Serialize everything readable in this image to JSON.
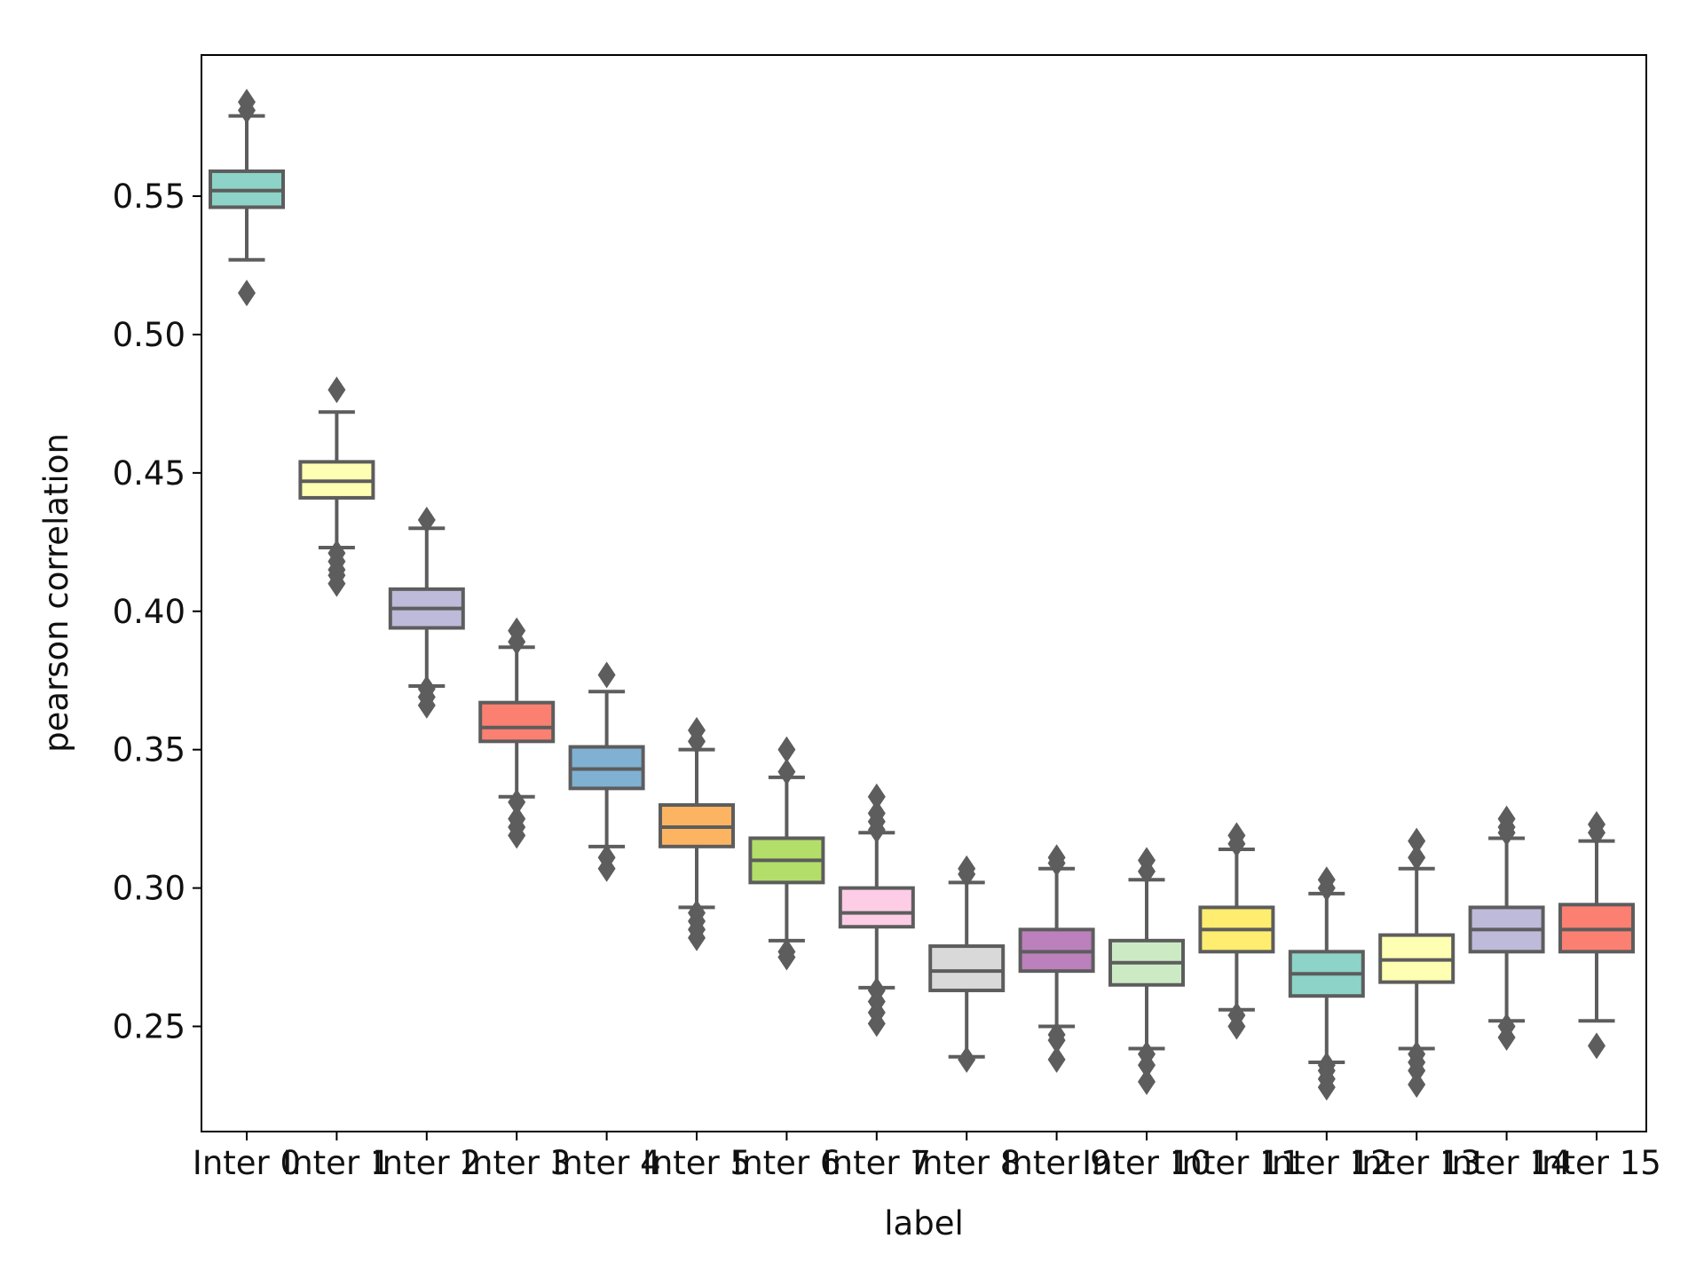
{
  "chart_data": {
    "type": "box",
    "xlabel": "label",
    "ylabel": "pearson correlation",
    "ylim": [
      0.212,
      0.601
    ],
    "yticks": [
      0.25,
      0.3,
      0.35,
      0.4,
      0.45,
      0.5,
      0.55
    ],
    "ytick_labels": [
      "0.25",
      "0.30",
      "0.35",
      "0.40",
      "0.45",
      "0.50",
      "0.55"
    ],
    "grid": false,
    "categories": [
      "Inter 0",
      "Inter 1",
      "Inter 2",
      "Inter 3",
      "Inter 4",
      "Inter 5",
      "Inter 6",
      "Inter 7",
      "Inter 8",
      "Inter 9",
      "Inter 10",
      "Inter 11",
      "Inter 12",
      "Inter 13",
      "Inter 14",
      "Inter 15"
    ],
    "colors": [
      "#8dd3c7",
      "#ffffb3",
      "#bebada",
      "#fb8072",
      "#80b1d3",
      "#fdb462",
      "#b3de69",
      "#fccde5",
      "#d9d9d9",
      "#bc80bd",
      "#ccebc5",
      "#ffed6f",
      "#8dd3c7",
      "#ffffb3",
      "#bebada",
      "#fb8072"
    ],
    "boxes": [
      {
        "whislo": 0.527,
        "q1": 0.546,
        "median": 0.552,
        "q3": 0.559,
        "whishi": 0.579,
        "fliers": [
          0.584,
          0.581,
          0.515
        ]
      },
      {
        "whislo": 0.423,
        "q1": 0.441,
        "median": 0.447,
        "q3": 0.454,
        "whishi": 0.472,
        "fliers": [
          0.48,
          0.421,
          0.418,
          0.415,
          0.413,
          0.41
        ]
      },
      {
        "whislo": 0.373,
        "q1": 0.394,
        "median": 0.401,
        "q3": 0.408,
        "whishi": 0.43,
        "fliers": [
          0.433,
          0.372,
          0.369,
          0.366
        ]
      },
      {
        "whislo": 0.333,
        "q1": 0.353,
        "median": 0.358,
        "q3": 0.367,
        "whishi": 0.387,
        "fliers": [
          0.393,
          0.389,
          0.331,
          0.325,
          0.322,
          0.319
        ]
      },
      {
        "whislo": 0.315,
        "q1": 0.336,
        "median": 0.343,
        "q3": 0.351,
        "whishi": 0.371,
        "fliers": [
          0.377,
          0.311,
          0.307
        ]
      },
      {
        "whislo": 0.293,
        "q1": 0.315,
        "median": 0.322,
        "q3": 0.33,
        "whishi": 0.35,
        "fliers": [
          0.357,
          0.353,
          0.291,
          0.288,
          0.285,
          0.282
        ]
      },
      {
        "whislo": 0.281,
        "q1": 0.302,
        "median": 0.31,
        "q3": 0.318,
        "whishi": 0.34,
        "fliers": [
          0.35,
          0.342,
          0.277,
          0.275
        ]
      },
      {
        "whislo": 0.264,
        "q1": 0.286,
        "median": 0.291,
        "q3": 0.3,
        "whishi": 0.32,
        "fliers": [
          0.333,
          0.327,
          0.324,
          0.321,
          0.263,
          0.259,
          0.255,
          0.251
        ]
      },
      {
        "whislo": 0.239,
        "q1": 0.263,
        "median": 0.27,
        "q3": 0.279,
        "whishi": 0.302,
        "fliers": [
          0.307,
          0.305,
          0.238
        ]
      },
      {
        "whislo": 0.25,
        "q1": 0.27,
        "median": 0.277,
        "q3": 0.285,
        "whishi": 0.307,
        "fliers": [
          0.311,
          0.309,
          0.247,
          0.245,
          0.238
        ]
      },
      {
        "whislo": 0.242,
        "q1": 0.265,
        "median": 0.273,
        "q3": 0.281,
        "whishi": 0.303,
        "fliers": [
          0.31,
          0.306,
          0.24,
          0.236,
          0.23
        ]
      },
      {
        "whislo": 0.256,
        "q1": 0.277,
        "median": 0.285,
        "q3": 0.293,
        "whishi": 0.314,
        "fliers": [
          0.319,
          0.316,
          0.254,
          0.25
        ]
      },
      {
        "whislo": 0.237,
        "q1": 0.261,
        "median": 0.269,
        "q3": 0.277,
        "whishi": 0.298,
        "fliers": [
          0.303,
          0.3,
          0.236,
          0.234,
          0.231,
          0.228
        ]
      },
      {
        "whislo": 0.242,
        "q1": 0.266,
        "median": 0.274,
        "q3": 0.283,
        "whishi": 0.307,
        "fliers": [
          0.317,
          0.311,
          0.24,
          0.237,
          0.234,
          0.229
        ]
      },
      {
        "whislo": 0.252,
        "q1": 0.277,
        "median": 0.285,
        "q3": 0.293,
        "whishi": 0.318,
        "fliers": [
          0.325,
          0.322,
          0.32,
          0.25,
          0.246
        ]
      },
      {
        "whislo": 0.252,
        "q1": 0.277,
        "median": 0.285,
        "q3": 0.294,
        "whishi": 0.317,
        "fliers": [
          0.323,
          0.32,
          0.243
        ]
      }
    ]
  }
}
